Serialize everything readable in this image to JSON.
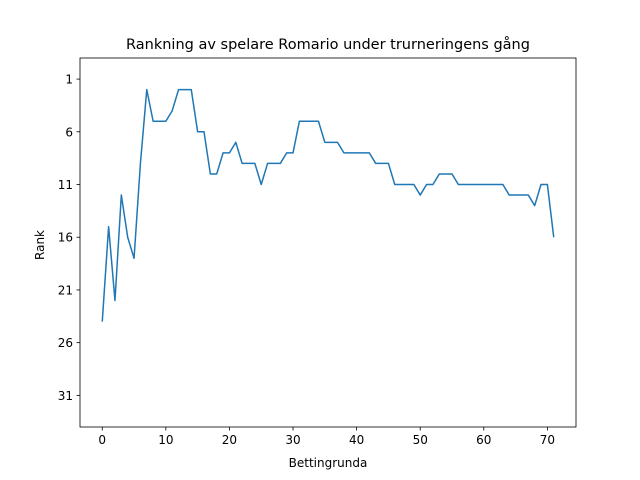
{
  "chart_data": {
    "type": "line",
    "title": "Rankning av spelare Romario under trurneringens gång",
    "xlabel": "Bettingrunda",
    "ylabel": "Rank",
    "xlim": [
      -3.5,
      74.5
    ],
    "ylim": [
      34,
      -1
    ],
    "y_inverted": true,
    "grid": false,
    "xticks": [
      0,
      10,
      20,
      30,
      40,
      50,
      60,
      70
    ],
    "yticks": [
      1,
      6,
      11,
      16,
      21,
      26,
      31
    ],
    "series": [
      {
        "color": "#1f77b4",
        "x": [
          0,
          1,
          2,
          3,
          4,
          5,
          6,
          7,
          8,
          9,
          10,
          11,
          12,
          13,
          14,
          15,
          16,
          17,
          18,
          19,
          20,
          21,
          22,
          23,
          24,
          25,
          26,
          27,
          28,
          29,
          30,
          31,
          32,
          33,
          34,
          35,
          36,
          37,
          38,
          39,
          40,
          41,
          42,
          43,
          44,
          45,
          46,
          47,
          48,
          49,
          50,
          51,
          52,
          53,
          54,
          55,
          56,
          57,
          58,
          59,
          60,
          61,
          62,
          63,
          64,
          65,
          66,
          67,
          68,
          69,
          70,
          71
        ],
        "values": [
          24,
          15,
          22,
          12,
          16,
          18,
          9,
          2,
          5,
          5,
          5,
          4,
          2,
          2,
          2,
          6,
          6,
          10,
          10,
          8,
          8,
          7,
          9,
          9,
          9,
          11,
          9,
          9,
          9,
          8,
          8,
          5,
          5,
          5,
          5,
          7,
          7,
          7,
          8,
          8,
          8,
          8,
          8,
          9,
          9,
          9,
          11,
          11,
          11,
          11,
          12,
          11,
          11,
          10,
          10,
          10,
          11,
          11,
          11,
          11,
          11,
          11,
          11,
          11,
          12,
          12,
          12,
          12,
          13,
          11,
          11,
          16
        ]
      }
    ]
  }
}
